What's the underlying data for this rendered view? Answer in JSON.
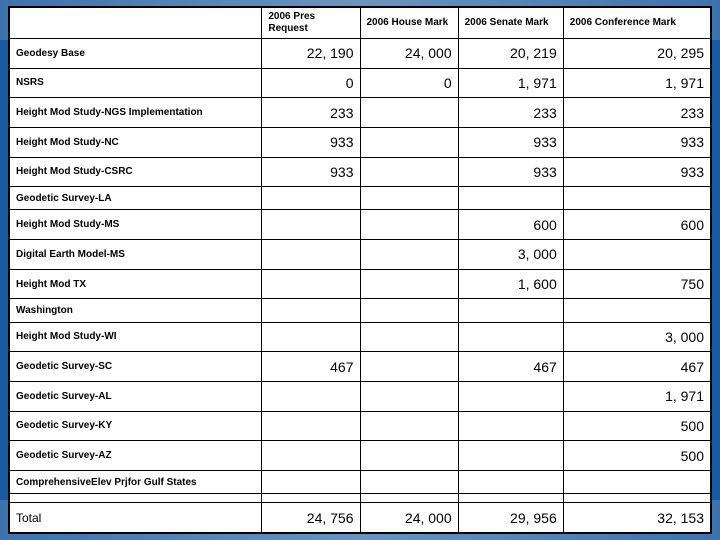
{
  "headers": [
    "",
    "2006 Pres Request",
    "2006 House Mark",
    "2006 Senate Mark",
    "2006 Conference Mark"
  ],
  "rows": [
    {
      "label": "Geodesy Base",
      "vals": [
        "22, 190",
        "24, 000",
        "20, 219",
        "20, 295"
      ]
    },
    {
      "label": "NSRS",
      "vals": [
        "0",
        "0",
        "1, 971",
        "1, 971"
      ]
    },
    {
      "label": "Height Mod Study-NGS Implementation",
      "vals": [
        "233",
        "",
        "233",
        "233"
      ]
    },
    {
      "label": "Height Mod Study-NC",
      "vals": [
        "933",
        "",
        "933",
        "933"
      ]
    },
    {
      "label": "Height Mod Study-CSRC",
      "vals": [
        "933",
        "",
        "933",
        "933"
      ]
    },
    {
      "label": "Geodetic Survey-LA",
      "vals": [
        "",
        "",
        "",
        ""
      ]
    },
    {
      "label": "Height Mod Study-MS",
      "vals": [
        "",
        "",
        "600",
        "600"
      ]
    },
    {
      "label": "Digital Earth Model-MS",
      "vals": [
        "",
        "",
        "3, 000",
        ""
      ]
    },
    {
      "label": "Height Mod TX",
      "vals": [
        "",
        "",
        "1, 600",
        "750"
      ]
    },
    {
      "label": "Washington",
      "vals": [
        "",
        "",
        "",
        ""
      ]
    },
    {
      "label": "Height Mod Study-WI",
      "vals": [
        "",
        "",
        "",
        "3, 000"
      ]
    },
    {
      "label": "Geodetic Survey-SC",
      "vals": [
        "467",
        "",
        "467",
        "467"
      ]
    },
    {
      "label": "Geodetic Survey-AL",
      "vals": [
        "",
        "",
        "",
        "1, 971"
      ]
    },
    {
      "label": "Geodetic Survey-KY",
      "vals": [
        "",
        "",
        "",
        "500"
      ]
    },
    {
      "label": "Geodetic Survey-AZ",
      "vals": [
        "",
        "",
        "",
        "500"
      ]
    },
    {
      "label": "ComprehensiveElev Prjfor Gulf States",
      "vals": [
        "",
        "",
        "",
        ""
      ]
    },
    {
      "label": "",
      "vals": [
        "",
        "",
        "",
        ""
      ]
    }
  ],
  "total": {
    "label": "Total",
    "vals": [
      "24, 756",
      "24, 000",
      "29, 956",
      "32, 153"
    ]
  }
}
